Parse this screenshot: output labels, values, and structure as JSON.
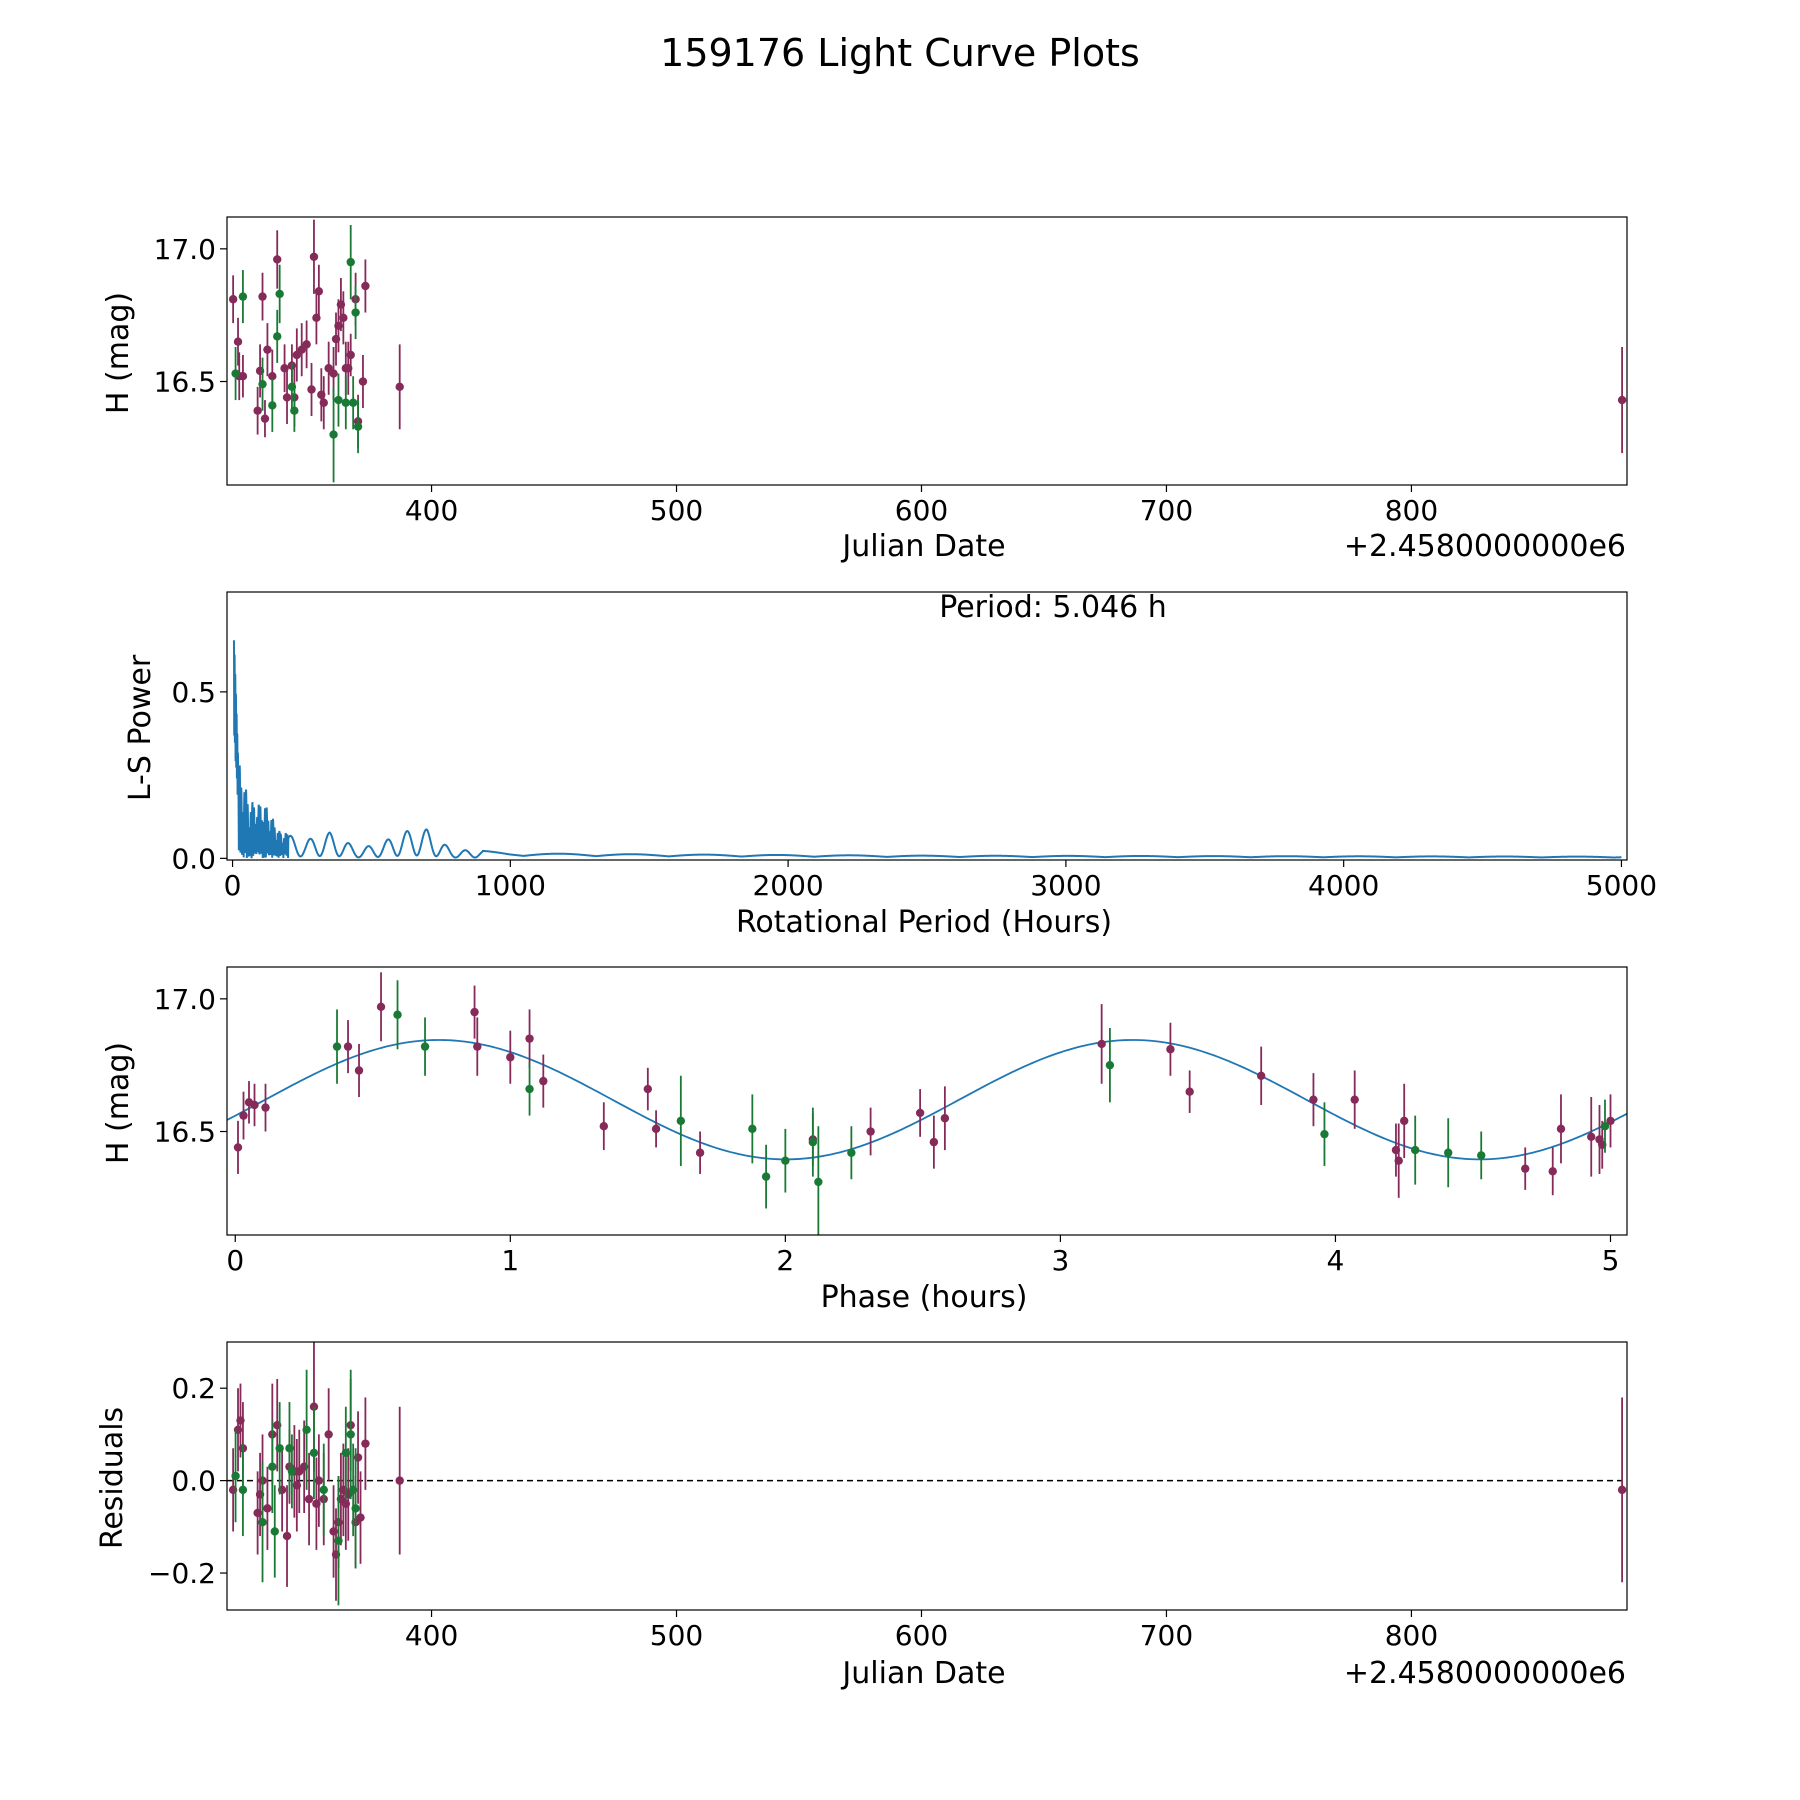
{
  "title": "159176 Light Curve Plots",
  "colors": {
    "magenta": "#852a59",
    "green": "#1a7a35",
    "line": "#1f77b4"
  },
  "chart_data": [
    {
      "id": "lc",
      "type": "scatter",
      "xlabel": "Julian Date",
      "ylabel": "H (mag)",
      "x_offset_label": "+2.4580000000e6",
      "xlim": [
        316.5,
        888
      ],
      "ylim": [
        16.11,
        17.12
      ],
      "xticks": [
        400,
        500,
        600,
        700,
        800
      ],
      "xtick_labels": [
        "400",
        "500",
        "600",
        "700",
        "800"
      ],
      "yticks": [
        16.5,
        17.0
      ],
      "ytick_labels": [
        "16.5",
        "17.0"
      ],
      "series": [
        {
          "name": "filter-1",
          "color": "magenta",
          "points": [
            [
              319,
              16.81,
              0.09
            ],
            [
              321,
              16.65,
              0.09
            ],
            [
              321.5,
              16.52,
              0.09
            ],
            [
              323,
              16.52,
              0.08
            ],
            [
              329,
              16.39,
              0.09
            ],
            [
              330,
              16.54,
              0.1
            ],
            [
              331,
              16.82,
              0.09
            ],
            [
              332,
              16.36,
              0.07
            ],
            [
              333,
              16.62,
              0.1
            ],
            [
              335,
              16.52,
              0.1
            ],
            [
              337,
              16.96,
              0.11
            ],
            [
              340,
              16.55,
              0.09
            ],
            [
              341,
              16.44,
              0.1
            ],
            [
              343,
              16.56,
              0.08
            ],
            [
              344,
              16.44,
              0.11
            ],
            [
              345,
              16.6,
              0.1
            ],
            [
              347,
              16.62,
              0.1
            ],
            [
              349,
              16.64,
              0.09
            ],
            [
              351,
              16.47,
              0.1
            ],
            [
              352,
              16.97,
              0.14
            ],
            [
              353,
              16.74,
              0.1
            ],
            [
              354,
              16.84,
              0.1
            ],
            [
              355,
              16.45,
              0.1
            ],
            [
              356,
              16.42,
              0.1
            ],
            [
              358,
              16.55,
              0.1
            ],
            [
              360,
              16.53,
              0.1
            ],
            [
              361,
              16.66,
              0.1
            ],
            [
              362,
              16.71,
              0.1
            ],
            [
              363,
              16.79,
              0.1
            ],
            [
              364,
              16.74,
              0.1
            ],
            [
              365,
              16.55,
              0.1
            ],
            [
              366,
              16.55,
              0.1
            ],
            [
              367,
              16.6,
              0.08
            ],
            [
              369,
              16.81,
              0.1
            ],
            [
              370,
              16.35,
              0.1
            ],
            [
              372,
              16.5,
              0.1
            ],
            [
              373,
              16.86,
              0.1
            ],
            [
              387,
              16.48,
              0.16
            ],
            [
              886,
              16.43,
              0.2
            ]
          ]
        },
        {
          "name": "filter-2",
          "color": "green",
          "points": [
            [
              320,
              16.53,
              0.1
            ],
            [
              323,
              16.82,
              0.1
            ],
            [
              331,
              16.49,
              0.1
            ],
            [
              335,
              16.41,
              0.1
            ],
            [
              337,
              16.67,
              0.1
            ],
            [
              338,
              16.83,
              0.11
            ],
            [
              343,
              16.48,
              0.09
            ],
            [
              344,
              16.39,
              0.08
            ],
            [
              360,
              16.3,
              0.18
            ],
            [
              362,
              16.43,
              0.1
            ],
            [
              365,
              16.42,
              0.1
            ],
            [
              367,
              16.95,
              0.14
            ],
            [
              368,
              16.42,
              0.1
            ],
            [
              369,
              16.76,
              0.1
            ],
            [
              370,
              16.33,
              0.1
            ]
          ]
        }
      ]
    },
    {
      "id": "ls",
      "type": "line",
      "xlabel": "Rotational Period (Hours)",
      "ylabel": "L-S Power",
      "annotation": "Period: 5.046 h",
      "xlim": [
        -20,
        5020
      ],
      "ylim": [
        -0.005,
        0.8
      ],
      "xticks": [
        0,
        1000,
        2000,
        3000,
        4000,
        5000
      ],
      "xtick_labels": [
        "0",
        "1000",
        "2000",
        "3000",
        "4000",
        "5000"
      ],
      "yticks": [
        0.0,
        0.5
      ],
      "ytick_labels": [
        "0.0",
        "0.5"
      ],
      "peak": {
        "period": 5.046,
        "power": 0.79
      },
      "envelope": [
        [
          0,
          0.79
        ],
        [
          20,
          0.3
        ],
        [
          60,
          0.17
        ],
        [
          120,
          0.16
        ],
        [
          170,
          0.08
        ],
        [
          250,
          0.07
        ],
        [
          350,
          0.08
        ],
        [
          450,
          0.03
        ],
        [
          600,
          0.08
        ],
        [
          700,
          0.09
        ],
        [
          800,
          0.03
        ],
        [
          1000,
          0.015
        ],
        [
          1500,
          0.012
        ],
        [
          2500,
          0.008
        ],
        [
          5000,
          0.005
        ]
      ]
    },
    {
      "id": "phase",
      "type": "scatter",
      "xlabel": "Phase (hours)",
      "ylabel": "H (mag)",
      "xlim": [
        -0.03,
        5.06
      ],
      "ylim": [
        16.11,
        17.12
      ],
      "xticks": [
        0,
        1,
        2,
        3,
        4,
        5
      ],
      "xtick_labels": [
        "0",
        "1",
        "2",
        "3",
        "4",
        "5"
      ],
      "yticks": [
        16.5,
        17.0
      ],
      "ytick_labels": [
        "16.5",
        "17.0"
      ],
      "fit": {
        "mean": 16.62,
        "amplitude": 0.225,
        "period": 2.523,
        "peak_phase": 0.74
      },
      "series": [
        {
          "name": "filter-1",
          "color": "magenta",
          "points": [
            [
              0.01,
              16.44,
              0.1
            ],
            [
              0.03,
              16.56,
              0.09
            ],
            [
              0.05,
              16.61,
              0.08
            ],
            [
              0.07,
              16.6,
              0.08
            ],
            [
              0.11,
              16.59,
              0.09
            ],
            [
              0.41,
              16.82,
              0.1
            ],
            [
              0.45,
              16.73,
              0.1
            ],
            [
              0.53,
              16.97,
              0.13
            ],
            [
              0.87,
              16.95,
              0.1
            ],
            [
              0.88,
              16.82,
              0.11
            ],
            [
              1.0,
              16.78,
              0.1
            ],
            [
              1.07,
              16.85,
              0.11
            ],
            [
              1.12,
              16.69,
              0.1
            ],
            [
              1.34,
              16.52,
              0.09
            ],
            [
              1.5,
              16.66,
              0.08
            ],
            [
              1.53,
              16.51,
              0.07
            ],
            [
              1.69,
              16.42,
              0.08
            ],
            [
              2.1,
              16.47,
              0.1
            ],
            [
              2.31,
              16.5,
              0.09
            ],
            [
              2.49,
              16.57,
              0.09
            ],
            [
              2.54,
              16.46,
              0.1
            ],
            [
              2.58,
              16.55,
              0.12
            ],
            [
              3.15,
              16.83,
              0.15
            ],
            [
              3.4,
              16.81,
              0.1
            ],
            [
              3.47,
              16.65,
              0.08
            ],
            [
              3.73,
              16.71,
              0.11
            ],
            [
              3.92,
              16.62,
              0.1
            ],
            [
              4.07,
              16.62,
              0.11
            ],
            [
              4.22,
              16.43,
              0.1
            ],
            [
              4.23,
              16.39,
              0.14
            ],
            [
              4.25,
              16.54,
              0.14
            ],
            [
              4.69,
              16.36,
              0.08
            ],
            [
              4.79,
              16.35,
              0.09
            ],
            [
              4.82,
              16.51,
              0.13
            ],
            [
              4.93,
              16.48,
              0.15
            ],
            [
              4.96,
              16.47,
              0.13
            ],
            [
              4.97,
              16.45,
              0.09
            ],
            [
              5.0,
              16.54,
              0.1
            ]
          ]
        },
        {
          "name": "filter-2",
          "color": "green",
          "points": [
            [
              0.37,
              16.82,
              0.14
            ],
            [
              0.59,
              16.94,
              0.13
            ],
            [
              0.69,
              16.82,
              0.11
            ],
            [
              1.07,
              16.66,
              0.1
            ],
            [
              1.62,
              16.54,
              0.17
            ],
            [
              1.88,
              16.51,
              0.13
            ],
            [
              1.93,
              16.33,
              0.12
            ],
            [
              2.0,
              16.39,
              0.12
            ],
            [
              2.1,
              16.46,
              0.13
            ],
            [
              2.12,
              16.31,
              0.21
            ],
            [
              2.24,
              16.42,
              0.1
            ],
            [
              3.18,
              16.75,
              0.14
            ],
            [
              3.96,
              16.49,
              0.12
            ],
            [
              4.29,
              16.43,
              0.13
            ],
            [
              4.41,
              16.42,
              0.13
            ],
            [
              4.53,
              16.41,
              0.09
            ],
            [
              4.98,
              16.52,
              0.1
            ]
          ]
        }
      ]
    },
    {
      "id": "resid",
      "type": "scatter",
      "xlabel": "Julian Date",
      "ylabel": "Residuals",
      "x_offset_label": "+2.4580000000e6",
      "xlim": [
        316.5,
        888
      ],
      "ylim": [
        -0.28,
        0.3
      ],
      "xticks": [
        400,
        500,
        600,
        700,
        800
      ],
      "xtick_labels": [
        "400",
        "500",
        "600",
        "700",
        "800"
      ],
      "yticks": [
        -0.2,
        0.0,
        0.2
      ],
      "ytick_labels": [
        "−0.2",
        "0.0",
        "0.2"
      ],
      "zero_line": 0,
      "series": [
        {
          "name": "filter-1",
          "color": "magenta",
          "points": [
            [
              319,
              -0.02,
              0.09
            ],
            [
              321,
              0.11,
              0.09
            ],
            [
              322,
              0.13,
              0.08
            ],
            [
              323,
              0.07,
              0.1
            ],
            [
              329,
              -0.07,
              0.09
            ],
            [
              330,
              -0.03,
              0.09
            ],
            [
              331,
              0.0,
              0.1
            ],
            [
              333,
              -0.06,
              0.09
            ],
            [
              335,
              0.1,
              0.11
            ],
            [
              337,
              0.12,
              0.1
            ],
            [
              339,
              -0.02,
              0.09
            ],
            [
              341,
              -0.12,
              0.11
            ],
            [
              342,
              0.03,
              0.08
            ],
            [
              344,
              0.02,
              0.1
            ],
            [
              345,
              -0.01,
              0.1
            ],
            [
              346,
              0.02,
              0.09
            ],
            [
              348,
              0.03,
              0.1
            ],
            [
              350,
              -0.04,
              0.1
            ],
            [
              352,
              0.16,
              0.14
            ],
            [
              353,
              -0.05,
              0.1
            ],
            [
              354,
              0.0,
              0.1
            ],
            [
              356,
              -0.04,
              0.1
            ],
            [
              358,
              0.1,
              0.1
            ],
            [
              360,
              -0.11,
              0.1
            ],
            [
              361,
              -0.16,
              0.1
            ],
            [
              362,
              -0.09,
              0.1
            ],
            [
              363,
              -0.04,
              0.1
            ],
            [
              364,
              -0.02,
              0.1
            ],
            [
              365,
              -0.05,
              0.1
            ],
            [
              366,
              -0.03,
              0.1
            ],
            [
              367,
              0.12,
              0.1
            ],
            [
              369,
              -0.09,
              0.1
            ],
            [
              370,
              0.05,
              0.1
            ],
            [
              371,
              -0.08,
              0.1
            ],
            [
              373,
              0.08,
              0.1
            ],
            [
              387,
              0.0,
              0.16
            ],
            [
              886,
              -0.02,
              0.2
            ]
          ]
        },
        {
          "name": "filter-2",
          "color": "green",
          "points": [
            [
              320,
              0.01,
              0.1
            ],
            [
              323,
              -0.02,
              0.1
            ],
            [
              331,
              -0.09,
              0.13
            ],
            [
              335,
              0.03,
              0.1
            ],
            [
              336,
              -0.11,
              0.1
            ],
            [
              338,
              0.07,
              0.1
            ],
            [
              342,
              0.07,
              0.1
            ],
            [
              343,
              0.02,
              0.08
            ],
            [
              349,
              0.11,
              0.13
            ],
            [
              352,
              0.06,
              0.1
            ],
            [
              356,
              -0.02,
              0.1
            ],
            [
              362,
              -0.13,
              0.14
            ],
            [
              365,
              0.06,
              0.1
            ],
            [
              367,
              0.1,
              0.14
            ],
            [
              368,
              -0.02,
              0.1
            ],
            [
              369,
              -0.06,
              0.13
            ]
          ]
        }
      ]
    }
  ]
}
